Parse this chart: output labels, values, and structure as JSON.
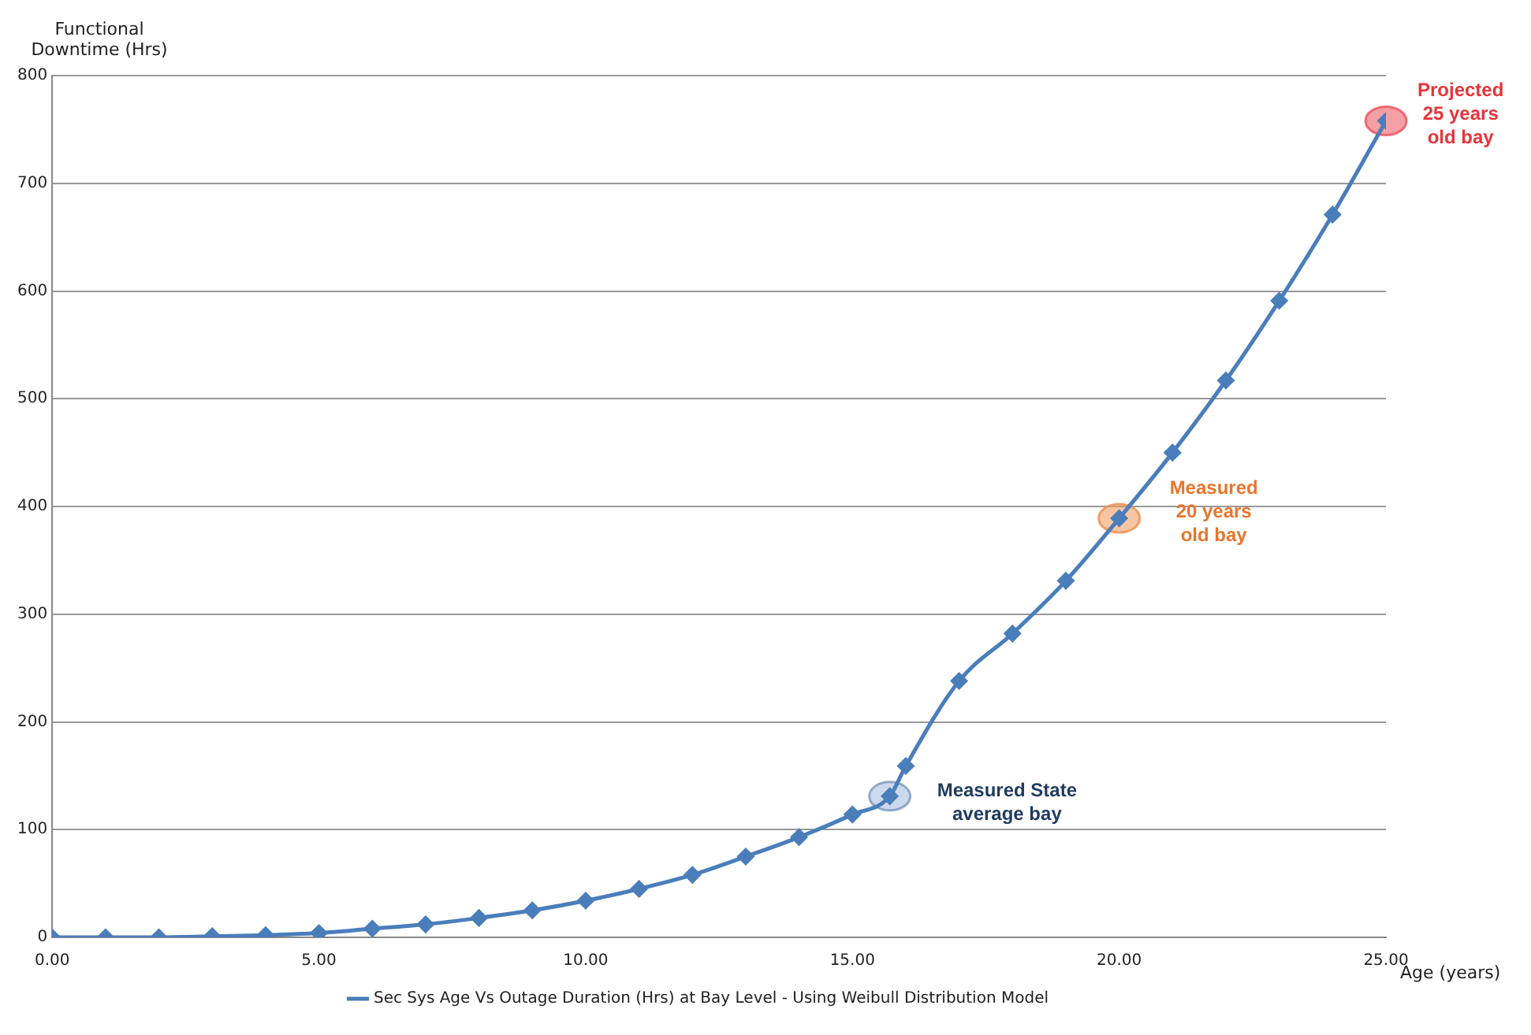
{
  "chart_data": {
    "type": "line",
    "xlabel": "Age (years)",
    "ylabel": "Functional Downtime (Hrs)",
    "x": [
      0,
      1,
      2,
      3,
      4,
      5,
      6,
      7,
      8,
      9,
      10,
      11,
      12,
      13,
      14,
      15,
      15.7,
      16,
      17,
      18,
      19,
      20,
      21,
      22,
      23,
      24,
      25
    ],
    "series": [
      {
        "name": "Sec Sys Age Vs Outage Duration (Hrs) at Bay Level - Using Weibull Distribution Model",
        "color": "#4a7ebb",
        "values": [
          0,
          0,
          0,
          1,
          2,
          4,
          8,
          12,
          18,
          25,
          34,
          45,
          58,
          75,
          93,
          114,
          131,
          159,
          238,
          282,
          331,
          389,
          450,
          517,
          591,
          671,
          758
        ]
      }
    ],
    "xlim": [
      0,
      25
    ],
    "xticks": [
      {
        "value": 0,
        "label": "0.00"
      },
      {
        "value": 5,
        "label": "5.00"
      },
      {
        "value": 10,
        "label": "10.00"
      },
      {
        "value": 15,
        "label": "15.00"
      },
      {
        "value": 20,
        "label": "20.00"
      },
      {
        "value": 25,
        "label": "25.00"
      }
    ],
    "ylim": [
      0,
      800
    ],
    "yticks": [
      0,
      100,
      200,
      300,
      400,
      500,
      600,
      700,
      800
    ],
    "grid": "y",
    "legend": "bottom",
    "marker": "diamond",
    "line_style": "solid",
    "annotations": [
      {
        "text": "Measured State\naverage bay",
        "x": 15.7,
        "y": 131
      },
      {
        "text": "Measured\n20 years\nold bay",
        "x": 20,
        "y": 389
      },
      {
        "text": "Projected\n25 years\nold bay",
        "x": 25,
        "y": 758
      }
    ]
  }
}
